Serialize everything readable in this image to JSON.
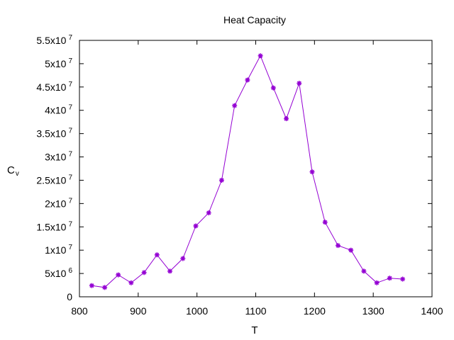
{
  "chart_data": {
    "type": "line",
    "title": "Heat Capacity",
    "xlabel": "T",
    "ylabel": "C",
    "ylabel_sub": "v",
    "xlim": [
      800,
      1400
    ],
    "ylim": [
      0,
      55000000
    ],
    "grid": false,
    "x_ticks": [
      {
        "value": 800,
        "label": "800"
      },
      {
        "value": 900,
        "label": "900"
      },
      {
        "value": 1000,
        "label": "1000"
      },
      {
        "value": 1100,
        "label": "1100"
      },
      {
        "value": 1200,
        "label": "1200"
      },
      {
        "value": 1300,
        "label": "1300"
      },
      {
        "value": 1400,
        "label": "1400"
      }
    ],
    "y_ticks": [
      {
        "value": 0,
        "base": "0",
        "exp": ""
      },
      {
        "value": 5000000,
        "base": "5x10",
        "exp": "6"
      },
      {
        "value": 10000000,
        "base": "1x10",
        "exp": "7"
      },
      {
        "value": 15000000,
        "base": "1.5x10",
        "exp": "7"
      },
      {
        "value": 20000000,
        "base": "2x10",
        "exp": "7"
      },
      {
        "value": 25000000,
        "base": "2.5x10",
        "exp": "7"
      },
      {
        "value": 30000000,
        "base": "3x10",
        "exp": "7"
      },
      {
        "value": 35000000,
        "base": "3.5x10",
        "exp": "7"
      },
      {
        "value": 40000000,
        "base": "4x10",
        "exp": "7"
      },
      {
        "value": 45000000,
        "base": "4.5x10",
        "exp": "7"
      },
      {
        "value": 50000000,
        "base": "5x10",
        "exp": "7"
      },
      {
        "value": 55000000,
        "base": "5.5x10",
        "exp": "7"
      }
    ],
    "series": [
      {
        "color": "#9400d3",
        "x": [
          821,
          843,
          866,
          888,
          910,
          932,
          954,
          976,
          998,
          1020,
          1042,
          1064,
          1086,
          1108,
          1130,
          1152,
          1174,
          1196,
          1218,
          1240,
          1262,
          1284,
          1306,
          1328,
          1350
        ],
        "values": [
          2400000,
          2000000,
          4700000,
          3000000,
          5200000,
          9000000,
          5500000,
          8200000,
          15200000,
          18000000,
          25000000,
          41000000,
          46500000,
          51700000,
          44800000,
          38200000,
          45800000,
          26800000,
          16000000,
          11000000,
          10000000,
          5500000,
          3000000,
          4000000,
          3800000
        ]
      }
    ]
  }
}
